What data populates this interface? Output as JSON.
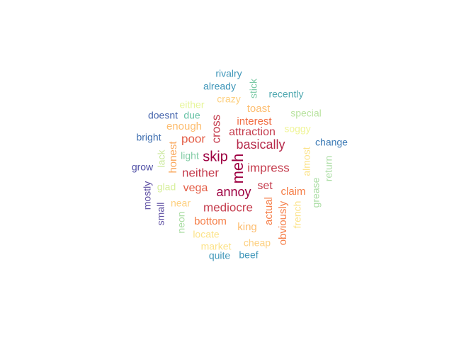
{
  "word_cloud": {
    "palette": "Spectral",
    "words": [
      {
        "text": "meh",
        "color": "#9e0142"
      },
      {
        "text": "skip",
        "color": "#9e0142"
      },
      {
        "text": "annoy",
        "color": "#9e0142"
      },
      {
        "text": "basically",
        "color": "#b6294a"
      },
      {
        "text": "impress",
        "color": "#c53d4e"
      },
      {
        "text": "attraction",
        "color": "#c53d4e"
      },
      {
        "text": "set",
        "color": "#c53d4e"
      },
      {
        "text": "neither",
        "color": "#c53d4e"
      },
      {
        "text": "mediocre",
        "color": "#c53d4e"
      },
      {
        "text": "cross",
        "color": "#c53d4e"
      },
      {
        "text": "poor",
        "color": "#e35c45"
      },
      {
        "text": "vega",
        "color": "#e35c45"
      },
      {
        "text": "interest",
        "color": "#f16d43"
      },
      {
        "text": "claim",
        "color": "#f57e48"
      },
      {
        "text": "actual",
        "color": "#f57e48"
      },
      {
        "text": "obviously",
        "color": "#f57e48"
      },
      {
        "text": "bottom",
        "color": "#f57e48"
      },
      {
        "text": "honest",
        "color": "#f9a659"
      },
      {
        "text": "enough",
        "color": "#fdbd6f"
      },
      {
        "text": "toast",
        "color": "#fdbd6f"
      },
      {
        "text": "king",
        "color": "#fdbd6f"
      },
      {
        "text": "crazy",
        "color": "#fdd080"
      },
      {
        "text": "near",
        "color": "#fdd080"
      },
      {
        "text": "cheap",
        "color": "#fdd080"
      },
      {
        "text": "french",
        "color": "#fce38a"
      },
      {
        "text": "almost",
        "color": "#fce38a"
      },
      {
        "text": "locate",
        "color": "#fce38a"
      },
      {
        "text": "market",
        "color": "#fce38a"
      },
      {
        "text": "soggy",
        "color": "#f0f59a"
      },
      {
        "text": "either",
        "color": "#e6f598"
      },
      {
        "text": "glad",
        "color": "#d7ef9b"
      },
      {
        "text": "lack",
        "color": "#cbe99d"
      },
      {
        "text": "special",
        "color": "#b9e3a0"
      },
      {
        "text": "grease",
        "color": "#abdda4"
      },
      {
        "text": "return",
        "color": "#abdda4"
      },
      {
        "text": "neon",
        "color": "#abdda4"
      },
      {
        "text": "light",
        "color": "#82cca5"
      },
      {
        "text": "stick",
        "color": "#7ac9a5"
      },
      {
        "text": "due",
        "color": "#66c2a5"
      },
      {
        "text": "recently",
        "color": "#4fa8b0"
      },
      {
        "text": "quite",
        "color": "#3d95b8"
      },
      {
        "text": "rivalry",
        "color": "#3d95b8"
      },
      {
        "text": "already",
        "color": "#3d95b8"
      },
      {
        "text": "beef",
        "color": "#3d95b8"
      },
      {
        "text": "change",
        "color": "#3d7bb6"
      },
      {
        "text": "bright",
        "color": "#3f6fb0"
      },
      {
        "text": "doesnt",
        "color": "#4766ad"
      },
      {
        "text": "grow",
        "color": "#5050a6"
      },
      {
        "text": "mostly",
        "color": "#5e4fa2"
      },
      {
        "text": "small",
        "color": "#5e4fa2"
      }
    ]
  }
}
